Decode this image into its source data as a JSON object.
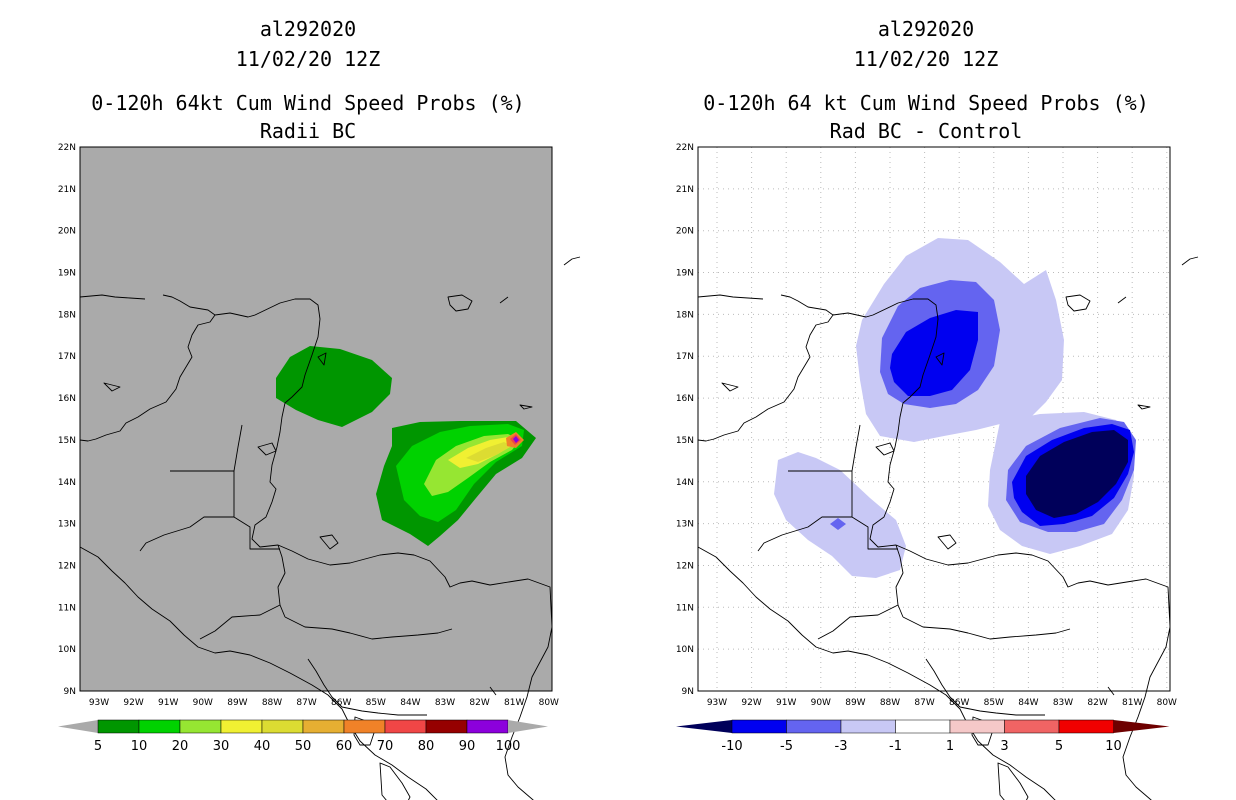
{
  "left": {
    "title1": "al292020",
    "title2": "11/02/20 12Z",
    "title3": "0-120h 64kt Cum Wind Speed Probs (%)",
    "title4": "Radii BC",
    "colorbar": {
      "labels": [
        "5",
        "10",
        "20",
        "30",
        "40",
        "50",
        "60",
        "70",
        "80",
        "90",
        "100"
      ],
      "colors": [
        "#009600",
        "#00d200",
        "#96e632",
        "#f0f032",
        "#dcdc32",
        "#e6af32",
        "#f08228",
        "#f04646",
        "#960000",
        "#8c00dc"
      ]
    }
  },
  "right": {
    "title1": "al292020",
    "title2": "11/02/20 12Z",
    "title3": "0-120h 64 kt Cum Wind Speed Probs (%)",
    "title4": "Rad BC - Control",
    "colorbar": {
      "labels": [
        "-10",
        "-5",
        "-3",
        "-1",
        "1",
        "3",
        "5",
        "10"
      ],
      "colors": [
        "#00005a",
        "#0000f0",
        "#6464f0",
        "#c8c8f5",
        "#ffffff",
        "#f5c8c8",
        "#f06464",
        "#f00000",
        "#6e0000"
      ]
    }
  },
  "axes": {
    "lat_labels": [
      "22N",
      "21N",
      "20N",
      "19N",
      "18N",
      "17N",
      "16N",
      "15N",
      "14N",
      "13N",
      "12N",
      "11N",
      "10N",
      "9N"
    ],
    "lon_labels": [
      "93W",
      "92W",
      "91W",
      "90W",
      "89W",
      "88W",
      "87W",
      "86W",
      "85W",
      "84W",
      "83W",
      "82W",
      "81W",
      "80W"
    ]
  },
  "colors": {
    "land_bg": "#aaaaaa",
    "grid": "#bbbbbb"
  }
}
